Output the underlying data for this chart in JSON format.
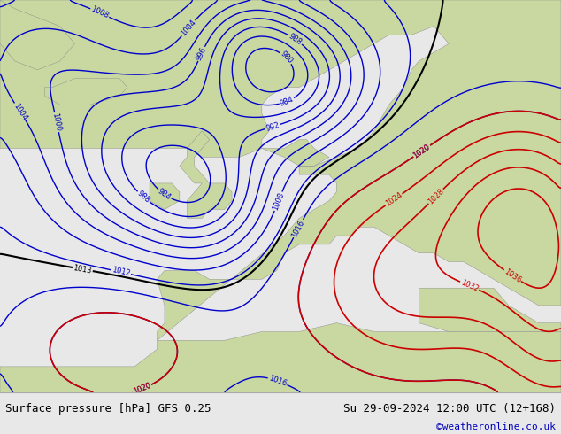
{
  "title_left": "Surface pressure [hPa] GFS 0.25",
  "title_right": "Su 29-09-2024 12:00 UTC (12+168)",
  "credit": "©weatheronline.co.uk",
  "sea_color": "#a8c8f0",
  "land_color": "#c8d8a0",
  "footer_bg": "#e8e8e8",
  "figsize": [
    6.34,
    4.9
  ],
  "dpi": 100,
  "title_fontsize": 9,
  "credit_fontsize": 8,
  "credit_color": "#0000bb",
  "blue_lw": 1.0,
  "red_lw": 1.2,
  "black_lw": 1.5,
  "label_fontsize": 6
}
